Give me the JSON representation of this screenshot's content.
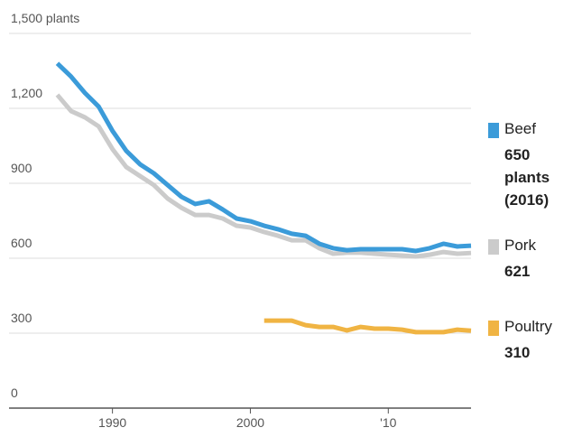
{
  "chart_data": {
    "type": "line",
    "x": [
      1986,
      1987,
      1988,
      1989,
      1990,
      1991,
      1992,
      1993,
      1994,
      1995,
      1996,
      1997,
      1998,
      1999,
      2000,
      2001,
      2002,
      2003,
      2004,
      2005,
      2006,
      2007,
      2008,
      2009,
      2010,
      2011,
      2012,
      2013,
      2014,
      2015,
      2016
    ],
    "series": [
      {
        "name": "Beef",
        "color": "#3b9bd9",
        "end_label": "650 plants (2016)",
        "values": [
          1380,
          1327,
          1262,
          1207,
          1110,
          1030,
          976,
          940,
          893,
          846,
          817,
          828,
          795,
          759,
          748,
          730,
          716,
          698,
          690,
          658,
          640,
          632,
          636,
          636,
          636,
          636,
          629,
          640,
          658,
          647,
          650
        ]
      },
      {
        "name": "Pork",
        "color": "#cbcbcb",
        "end_label": "621",
        "values": [
          1254,
          1189,
          1164,
          1128,
          1037,
          965,
          929,
          893,
          839,
          802,
          773,
          773,
          759,
          730,
          723,
          705,
          690,
          672,
          672,
          640,
          618,
          622,
          622,
          618,
          614,
          611,
          607,
          614,
          625,
          618,
          621
        ]
      },
      {
        "name": "Poultry",
        "color": "#f0b443",
        "end_label": "310",
        "values": [
          null,
          null,
          null,
          null,
          null,
          null,
          null,
          null,
          null,
          null,
          null,
          null,
          null,
          null,
          null,
          350,
          350,
          350,
          332,
          325,
          325,
          311,
          325,
          318,
          318,
          314,
          304,
          304,
          304,
          314,
          310
        ]
      }
    ],
    "xlim": [
      1982.5,
      2016
    ],
    "xticks": [
      1990,
      2000,
      {
        "value": 2010,
        "label": "'10"
      }
    ],
    "ylim": [
      0,
      1500
    ],
    "yticks": [
      0,
      300,
      600,
      900,
      {
        "value": 1200,
        "label": "1,200"
      },
      {
        "value": 1500,
        "label": "1,500 plants"
      }
    ],
    "grid": true
  }
}
